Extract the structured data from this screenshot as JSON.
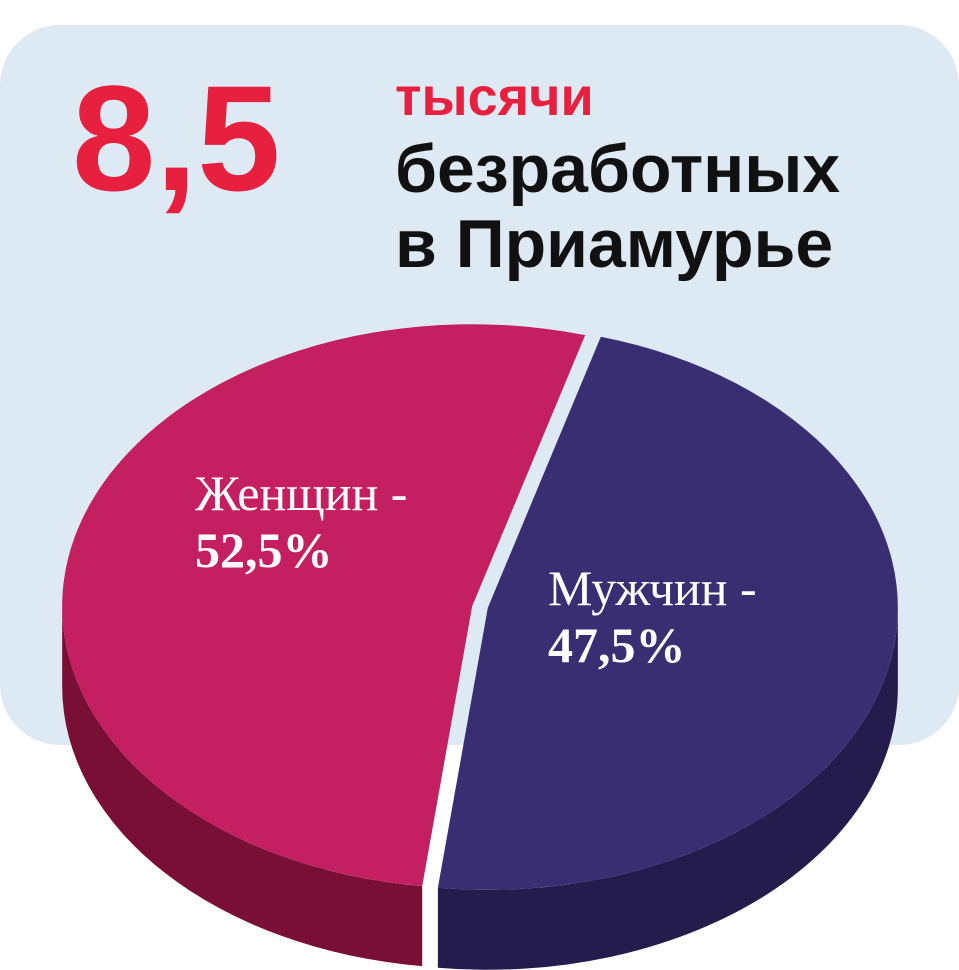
{
  "chart_data": {
    "type": "pie",
    "headline": "8,5",
    "title_lines": [
      "тысячи",
      "безработных",
      "в Приамурье"
    ],
    "categories": [
      "Женщин -",
      "Мужчин -"
    ],
    "values": [
      52.5,
      47.5
    ],
    "value_labels": [
      "52,5%",
      "47,5%"
    ],
    "colors": [
      "#c41f60",
      "#392e72"
    ],
    "side_colors": [
      "#7a0f36",
      "#241c4c"
    ]
  }
}
